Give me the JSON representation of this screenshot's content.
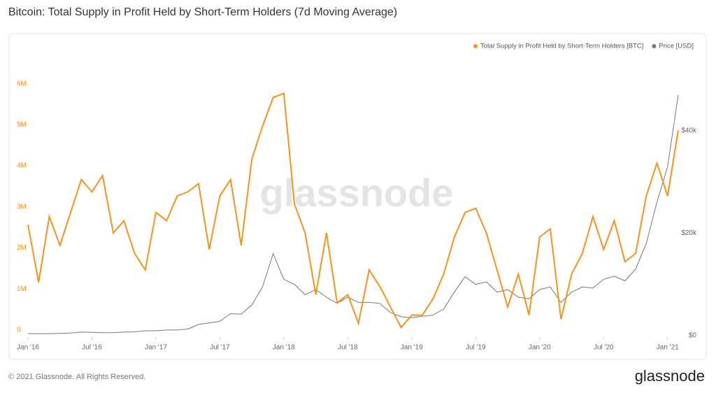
{
  "chart_data": {
    "type": "line",
    "title": "Bitcoin: Total Supply in Profit Held by Short-Term Holders (7d Moving Average)",
    "watermark": "glassnode",
    "footer": "© 2021 Glassnode. All Rights Reserved.",
    "logo": "glassnode",
    "x": [
      "2016-01",
      "2016-02",
      "2016-03",
      "2016-04",
      "2016-05",
      "2016-06",
      "2016-07",
      "2016-08",
      "2016-09",
      "2016-10",
      "2016-11",
      "2016-12",
      "2017-01",
      "2017-02",
      "2017-03",
      "2017-04",
      "2017-05",
      "2017-06",
      "2017-07",
      "2017-08",
      "2017-09",
      "2017-10",
      "2017-11",
      "2017-12",
      "2018-01",
      "2018-02",
      "2018-03",
      "2018-04",
      "2018-05",
      "2018-06",
      "2018-07",
      "2018-08",
      "2018-09",
      "2018-10",
      "2018-11",
      "2018-12",
      "2019-01",
      "2019-02",
      "2019-03",
      "2019-04",
      "2019-05",
      "2019-06",
      "2019-07",
      "2019-08",
      "2019-09",
      "2019-10",
      "2019-11",
      "2019-12",
      "2020-01",
      "2020-02",
      "2020-03",
      "2020-04",
      "2020-05",
      "2020-06",
      "2020-07",
      "2020-08",
      "2020-09",
      "2020-10",
      "2020-11",
      "2020-12",
      "2021-01",
      "2021-02"
    ],
    "xticks": [
      {
        "value": "2016-01",
        "label": "Jan '16"
      },
      {
        "value": "2016-07",
        "label": "Jul '16"
      },
      {
        "value": "2017-01",
        "label": "Jan '17"
      },
      {
        "value": "2017-07",
        "label": "Jul '17"
      },
      {
        "value": "2018-01",
        "label": "Jan '18"
      },
      {
        "value": "2018-07",
        "label": "Jul '18"
      },
      {
        "value": "2019-01",
        "label": "Jan '19"
      },
      {
        "value": "2019-07",
        "label": "Jul '19"
      },
      {
        "value": "2020-01",
        "label": "Jan '20"
      },
      {
        "value": "2020-07",
        "label": "Jul '20"
      },
      {
        "value": "2021-01",
        "label": "Jan '21"
      }
    ],
    "ylim": [
      0,
      6300000
    ],
    "yticks": [
      0,
      {
        "value": 1000000,
        "label": "1M"
      },
      {
        "value": 2000000,
        "label": "2M"
      },
      {
        "value": 3000000,
        "label": "3M"
      },
      {
        "value": 4000000,
        "label": "4M"
      },
      {
        "value": 5000000,
        "label": "5M"
      },
      {
        "value": 6000000,
        "label": "6M"
      }
    ],
    "y2lim": [
      0,
      50500
    ],
    "y2ticks": [
      {
        "value": 0,
        "label": "$0"
      },
      {
        "value": 20000,
        "label": "$20k"
      },
      {
        "value": 40000,
        "label": "$40k"
      }
    ],
    "series": [
      {
        "name": "Total Supply in Profit Held by Short-Term Holders [BTC]",
        "color": "#f7931a",
        "values": [
          2700000,
          1300000,
          2900000,
          2200000,
          3000000,
          3800000,
          3500000,
          3900000,
          2500000,
          2800000,
          2000000,
          1600000,
          3000000,
          2800000,
          3400000,
          3500000,
          3700000,
          2100000,
          3400000,
          3800000,
          2200000,
          4300000,
          5100000,
          5800000,
          5900000,
          3200000,
          2500000,
          1000000,
          2500000,
          800000,
          1000000,
          300000,
          1600000,
          1200000,
          700000,
          200000,
          500000,
          500000,
          900000,
          1500000,
          2400000,
          3000000,
          3100000,
          2500000,
          1600000,
          700000,
          1500000,
          500000,
          2400000,
          2600000,
          400000,
          1500000,
          2000000,
          2900000,
          2100000,
          2800000,
          1800000,
          2000000,
          3400000,
          4200000,
          3400000,
          5000000
        ]
      },
      {
        "name": "Price [USD]",
        "color": "#777777",
        "axis": "y2",
        "values": [
          400,
          400,
          400,
          450,
          500,
          700,
          650,
          580,
          600,
          700,
          740,
          950,
          950,
          1100,
          1100,
          1300,
          2200,
          2500,
          2800,
          4300,
          4200,
          6000,
          9500,
          16000,
          11000,
          10000,
          8000,
          9000,
          7500,
          6300,
          7500,
          6500,
          6500,
          6300,
          4500,
          3700,
          3500,
          3800,
          4000,
          5200,
          8500,
          11500,
          10000,
          10500,
          8500,
          9000,
          7500,
          7200,
          9000,
          9500,
          6500,
          8500,
          9500,
          9300,
          11000,
          11600,
          10700,
          13000,
          18000,
          26000,
          33000,
          47000
        ]
      }
    ]
  }
}
